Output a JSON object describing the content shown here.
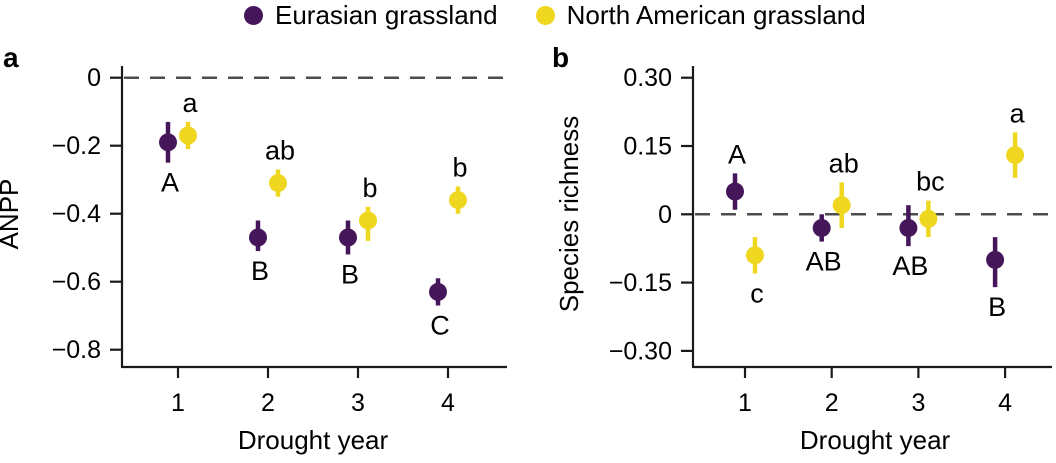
{
  "legend": {
    "items": [
      {
        "name": "eurasian",
        "label": "Eurasian grassland",
        "color": "#45175A"
      },
      {
        "name": "north-american",
        "label": "North American grassland",
        "color": "#EFD71F"
      }
    ]
  },
  "panel_labels": {
    "a": "a",
    "b": "b"
  },
  "colors": {
    "eurasian": "#45175A",
    "north_american": "#EFD71F",
    "axis": "#1a1a1a",
    "reference_line": "#4d4d4d",
    "text": "#000000"
  },
  "chart_data": [
    {
      "type": "scatter",
      "panel": "a",
      "xlabel": "Drought year",
      "ylabel": "ANPP",
      "x_ticks": [
        "1",
        "2",
        "3",
        "4"
      ],
      "y_ticks": [
        0,
        -0.2,
        -0.4,
        -0.6,
        -0.8
      ],
      "y_tick_labels": [
        "0",
        "−0.2",
        "−0.4",
        "−0.6",
        "−0.8"
      ],
      "ylim": [
        -0.85,
        0.04
      ],
      "reference_line_y": 0,
      "grid": false,
      "legend_position": "top",
      "series": [
        {
          "name": "Eurasian grassland",
          "color": "#45175A",
          "points": [
            {
              "x": 1,
              "y": -0.19,
              "ci_low": -0.25,
              "ci_high": -0.13,
              "letter": "A",
              "letter_pos": "below"
            },
            {
              "x": 2,
              "y": -0.47,
              "ci_low": -0.51,
              "ci_high": -0.42,
              "letter": "B",
              "letter_pos": "below"
            },
            {
              "x": 3,
              "y": -0.47,
              "ci_low": -0.52,
              "ci_high": -0.42,
              "letter": "B",
              "letter_pos": "below"
            },
            {
              "x": 4,
              "y": -0.63,
              "ci_low": -0.67,
              "ci_high": -0.59,
              "letter": "C",
              "letter_pos": "below"
            }
          ]
        },
        {
          "name": "North American grassland",
          "color": "#EFD71F",
          "points": [
            {
              "x": 1,
              "y": -0.17,
              "ci_low": -0.21,
              "ci_high": -0.13,
              "letter": "a",
              "letter_pos": "above"
            },
            {
              "x": 2,
              "y": -0.31,
              "ci_low": -0.35,
              "ci_high": -0.27,
              "letter": "ab",
              "letter_pos": "above"
            },
            {
              "x": 3,
              "y": -0.42,
              "ci_low": -0.48,
              "ci_high": -0.38,
              "letter": "b",
              "letter_pos": "above"
            },
            {
              "x": 4,
              "y": -0.36,
              "ci_low": -0.4,
              "ci_high": -0.32,
              "letter": "b",
              "letter_pos": "above"
            }
          ]
        }
      ]
    },
    {
      "type": "scatter",
      "panel": "b",
      "xlabel": "Drought year",
      "ylabel": "Species richness",
      "x_ticks": [
        "1",
        "2",
        "3",
        "4"
      ],
      "y_ticks": [
        0.3,
        0.15,
        0,
        -0.15,
        -0.3
      ],
      "y_tick_labels": [
        "0.30",
        "0.15",
        "0",
        "−0.15",
        "−0.30"
      ],
      "ylim": [
        -0.33,
        0.33
      ],
      "reference_line_y": 0,
      "grid": false,
      "legend_position": "top",
      "series": [
        {
          "name": "Eurasian grassland",
          "color": "#45175A",
          "points": [
            {
              "x": 1,
              "y": 0.05,
              "ci_low": 0.01,
              "ci_high": 0.09,
              "letter": "A",
              "letter_pos": "above"
            },
            {
              "x": 2,
              "y": -0.03,
              "ci_low": -0.06,
              "ci_high": 0.0,
              "letter": "AB",
              "letter_pos": "below"
            },
            {
              "x": 3,
              "y": -0.03,
              "ci_low": -0.07,
              "ci_high": 0.02,
              "letter": "AB",
              "letter_pos": "below"
            },
            {
              "x": 4,
              "y": -0.1,
              "ci_low": -0.16,
              "ci_high": -0.05,
              "letter": "B",
              "letter_pos": "below"
            }
          ]
        },
        {
          "name": "North American grassland",
          "color": "#EFD71F",
          "points": [
            {
              "x": 1,
              "y": -0.09,
              "ci_low": -0.13,
              "ci_high": -0.05,
              "letter": "c",
              "letter_pos": "below"
            },
            {
              "x": 2,
              "y": 0.02,
              "ci_low": -0.03,
              "ci_high": 0.07,
              "letter": "ab",
              "letter_pos": "above"
            },
            {
              "x": 3,
              "y": -0.01,
              "ci_low": -0.05,
              "ci_high": 0.03,
              "letter": "bc",
              "letter_pos": "above"
            },
            {
              "x": 4,
              "y": 0.13,
              "ci_low": 0.08,
              "ci_high": 0.18,
              "letter": "a",
              "letter_pos": "above"
            }
          ]
        }
      ]
    }
  ]
}
